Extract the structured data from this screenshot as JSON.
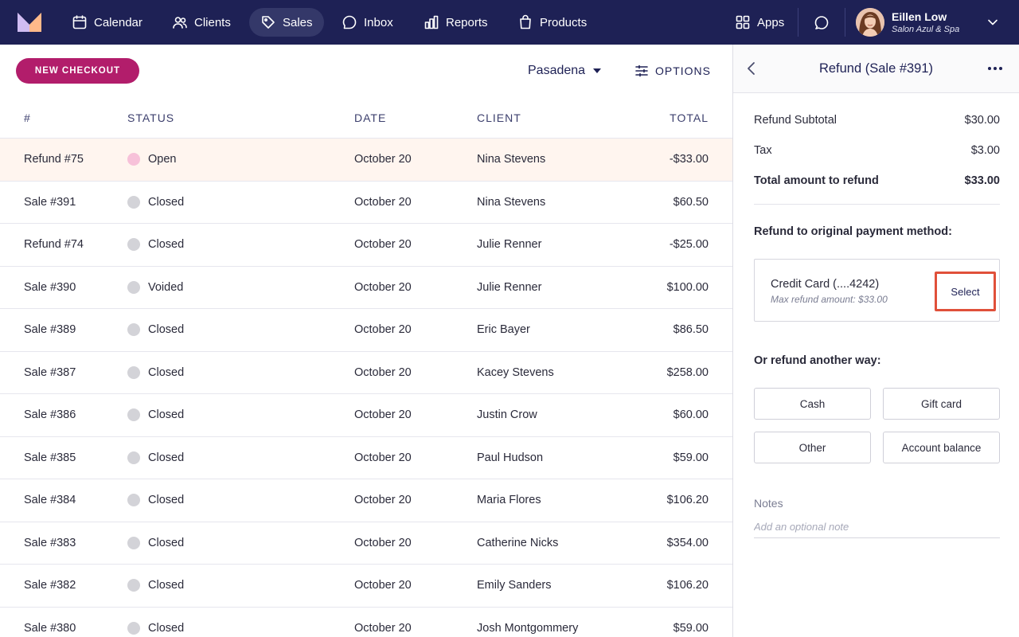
{
  "nav": {
    "items": [
      {
        "label": "Calendar",
        "icon": "calendar-icon"
      },
      {
        "label": "Clients",
        "icon": "users-icon"
      },
      {
        "label": "Sales",
        "icon": "tag-icon",
        "active": true
      },
      {
        "label": "Inbox",
        "icon": "inbox-icon"
      },
      {
        "label": "Reports",
        "icon": "bar-chart-icon"
      },
      {
        "label": "Products",
        "icon": "shopping-bag-icon"
      }
    ],
    "apps_label": "Apps",
    "user": {
      "name": "Eillen Low",
      "business": "Salon Azul & Spa"
    }
  },
  "toolbar": {
    "new_checkout_label": "NEW CHECKOUT",
    "location": "Pasadena",
    "options_label": "OPTIONS"
  },
  "table": {
    "columns": [
      "#",
      "STATUS",
      "DATE",
      "CLIENT",
      "TOTAL"
    ],
    "rows": [
      {
        "id": "Refund #75",
        "status": "Open",
        "date": "October 20",
        "client": "Nina Stevens",
        "total": "-$33.00",
        "highlight": true
      },
      {
        "id": "Sale #391",
        "status": "Closed",
        "date": "October 20",
        "client": "Nina Stevens",
        "total": "$60.50"
      },
      {
        "id": "Refund #74",
        "status": "Closed",
        "date": "October 20",
        "client": "Julie Renner",
        "total": "-$25.00"
      },
      {
        "id": "Sale #390",
        "status": "Voided",
        "date": "October 20",
        "client": "Julie Renner",
        "total": "$100.00"
      },
      {
        "id": "Sale #389",
        "status": "Closed",
        "date": "October 20",
        "client": "Eric Bayer",
        "total": "$86.50"
      },
      {
        "id": "Sale #387",
        "status": "Closed",
        "date": "October 20",
        "client": "Kacey Stevens",
        "total": "$258.00"
      },
      {
        "id": "Sale #386",
        "status": "Closed",
        "date": "October 20",
        "client": "Justin Crow",
        "total": "$60.00"
      },
      {
        "id": "Sale #385",
        "status": "Closed",
        "date": "October 20",
        "client": "Paul Hudson",
        "total": "$59.00"
      },
      {
        "id": "Sale #384",
        "status": "Closed",
        "date": "October 20",
        "client": "Maria Flores",
        "total": "$106.20"
      },
      {
        "id": "Sale #383",
        "status": "Closed",
        "date": "October 20",
        "client": "Catherine Nicks",
        "total": "$354.00"
      },
      {
        "id": "Sale #382",
        "status": "Closed",
        "date": "October 20",
        "client": "Emily Sanders",
        "total": "$106.20"
      },
      {
        "id": "Sale #380",
        "status": "Closed",
        "date": "October 20",
        "client": "Josh Montgommery",
        "total": "$59.00"
      }
    ]
  },
  "panel": {
    "title": "Refund (Sale #391)",
    "summary": [
      {
        "label": "Refund Subtotal",
        "value": "$30.00"
      },
      {
        "label": "Tax",
        "value": "$3.00"
      },
      {
        "label": "Total amount to refund",
        "value": "$33.00"
      }
    ],
    "original_method_label": "Refund to original payment method:",
    "card": {
      "title": "Credit Card (....4242)",
      "subtitle": "Max refund amount: $33.00",
      "select_label": "Select"
    },
    "other_way_label": "Or refund another way:",
    "ways": [
      "Cash",
      "Gift card",
      "Other",
      "Account balance"
    ],
    "notes_label": "Notes",
    "notes_placeholder": "Add an optional note"
  },
  "colors": {
    "nav_bg": "#1e2155",
    "nav_active": "#343869",
    "brand_button": "#b21d6b",
    "row_highlight": "#fff5ef",
    "status_open": "#f7c1d9",
    "status_default": "#d3d3d8",
    "select_outline": "#e0503a"
  }
}
